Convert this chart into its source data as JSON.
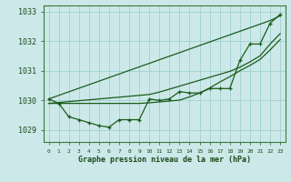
{
  "background_color": "#cce8e8",
  "grid_color": "#99cccc",
  "line_color": "#1a5c1a",
  "title": "Graphe pression niveau de la mer (hPa)",
  "ylim": [
    1028.6,
    1033.2
  ],
  "xlim": [
    -0.5,
    23.5
  ],
  "yticks": [
    1029,
    1030,
    1031,
    1032,
    1033
  ],
  "xticks": [
    0,
    1,
    2,
    3,
    4,
    5,
    6,
    7,
    8,
    9,
    10,
    11,
    12,
    13,
    14,
    15,
    16,
    17,
    18,
    19,
    20,
    21,
    22,
    23
  ],
  "xtick_labels": [
    "0",
    "1",
    "2",
    "3",
    "4",
    "5",
    "6",
    "7",
    "8",
    "9",
    "10",
    "11",
    "12",
    "13",
    "14",
    "15",
    "16",
    "17",
    "18",
    "19",
    "20",
    "21",
    "22",
    "23"
  ],
  "series_main": [
    1030.05,
    1029.9,
    1029.45,
    1029.35,
    1029.25,
    1029.15,
    1029.1,
    1029.35,
    1029.35,
    1029.35,
    1030.05,
    1030.0,
    1030.05,
    1030.3,
    1030.25,
    1030.25,
    1030.4,
    1030.4,
    1030.4,
    1031.35,
    1031.9,
    1031.9,
    1032.6,
    1032.9
  ],
  "series_line_top": [
    1030.05,
    1030.17,
    1030.29,
    1030.41,
    1030.53,
    1030.65,
    1030.77,
    1030.89,
    1031.01,
    1031.13,
    1031.25,
    1031.37,
    1031.49,
    1031.61,
    1031.73,
    1031.85,
    1031.97,
    1032.09,
    1032.21,
    1032.33,
    1032.45,
    1032.57,
    1032.69,
    1032.85
  ],
  "series_line_mid": [
    1029.9,
    1029.93,
    1029.96,
    1029.99,
    1030.02,
    1030.05,
    1030.08,
    1030.11,
    1030.14,
    1030.17,
    1030.2,
    1030.28,
    1030.38,
    1030.48,
    1030.58,
    1030.68,
    1030.78,
    1030.88,
    1030.98,
    1031.12,
    1031.3,
    1031.5,
    1031.9,
    1032.25
  ],
  "series_line_low": [
    1029.9,
    1029.9,
    1029.9,
    1029.9,
    1029.9,
    1029.9,
    1029.9,
    1029.9,
    1029.9,
    1029.9,
    1029.92,
    1029.95,
    1029.98,
    1030.01,
    1030.12,
    1030.25,
    1030.42,
    1030.62,
    1030.8,
    1031.0,
    1031.18,
    1031.38,
    1031.7,
    1032.05
  ]
}
